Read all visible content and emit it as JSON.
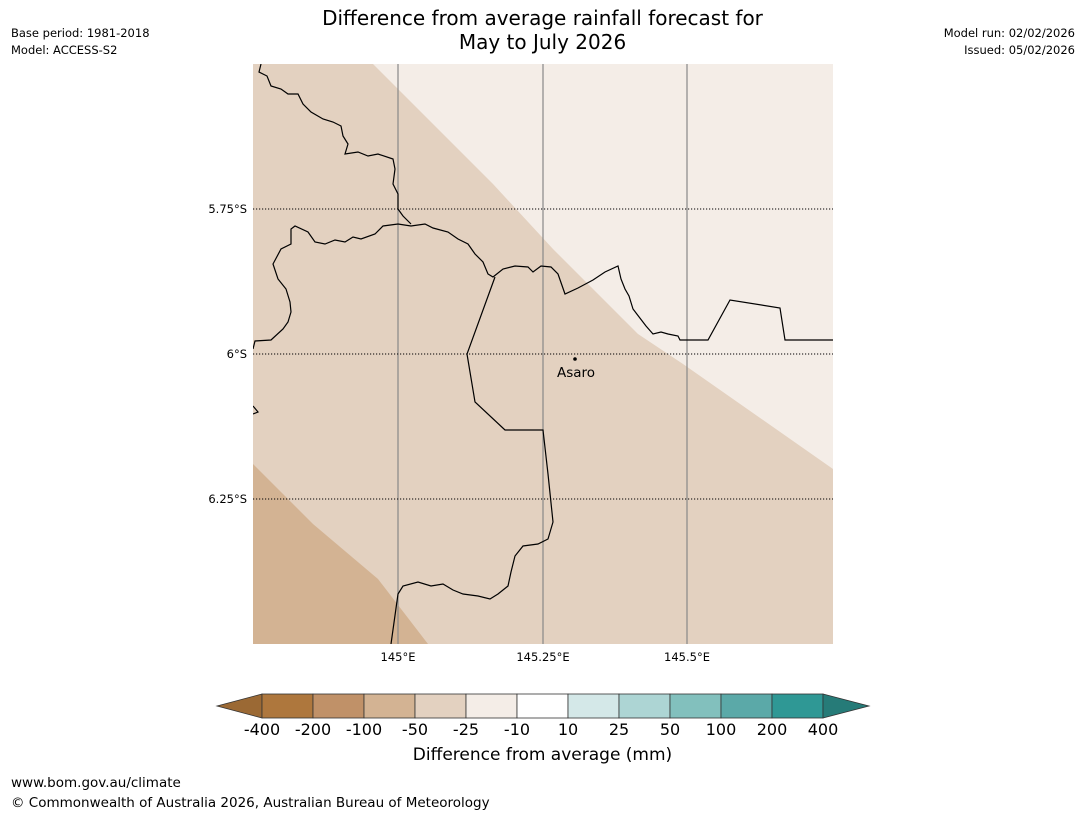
{
  "header": {
    "base_period": "Base period: 1981-2018",
    "model": "Model: ACCESS-S2",
    "model_run": "Model run: 02/02/2026",
    "issued": "Issued: 05/02/2026",
    "title_line1": "Difference from average rainfall forecast for",
    "title_line2": "May to July 2026"
  },
  "map": {
    "lat_labels": [
      "5.75°S",
      "6°S",
      "6.25°S"
    ],
    "lon_labels": [
      "145°E",
      "145.25°E",
      "145.5°E"
    ],
    "town": "Asaro",
    "fill_colors": {
      "minus_100_to_minus_50": "#d3b393",
      "minus_50_to_minus_25": "#e3d1c0",
      "minus_25_to_minus_10": "#f4ede7",
      "gridline": "#888888",
      "border": "#000000"
    }
  },
  "legend": {
    "title": "Difference from average (mm)",
    "ticks": [
      "-400",
      "-200",
      "-100",
      "-50",
      "-25",
      "-10",
      "10",
      "25",
      "50",
      "100",
      "200",
      "400"
    ],
    "colors": [
      "#9b6934",
      "#ae773d",
      "#c09168",
      "#d3b393",
      "#e3d1c0",
      "#f4ede7",
      "#ffffff",
      "#d4e8e8",
      "#add5d4",
      "#82c0bd",
      "#5ba9a8",
      "#2f9895",
      "#267b78"
    ]
  },
  "footer": {
    "url": "www.bom.gov.au/climate",
    "copyright": "© Commonwealth of Australia 2026, Australian Bureau of Meteorology"
  }
}
